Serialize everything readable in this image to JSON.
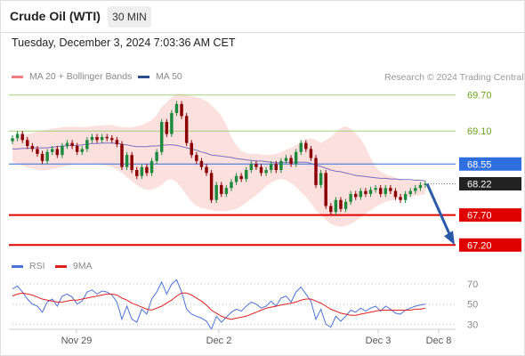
{
  "header": {
    "title": "Crude Oil (WTI)",
    "timeframe": "30 MIN",
    "datetime": "Tuesday, December 3, 2024 7:03:36 AM CET"
  },
  "legend": {
    "bollinger": {
      "label": "MA 20 + Bollinger Bands",
      "color": "#f08080"
    },
    "ma50": {
      "label": "MA 50",
      "color": "#2b4e8c"
    },
    "copyright": "Research © 2024 Trading Central"
  },
  "rsi_legend": {
    "rsi": {
      "label": "RSI",
      "color": "#4a72d8"
    },
    "ma": {
      "label": "9MA",
      "color": "#e02020"
    }
  },
  "chart_data": [
    {
      "type": "candlestick",
      "ylim": [
        67.13,
        69.8
      ],
      "levels": [
        {
          "value": 69.7,
          "label": "69.70",
          "kind": "target",
          "color": "#6aa61e"
        },
        {
          "value": 69.1,
          "label": "69.10",
          "kind": "target",
          "color": "#6aa61e"
        },
        {
          "value": 68.55,
          "label": "68.55",
          "kind": "pivot",
          "color": "#2f6fe0"
        },
        {
          "value": 68.22,
          "label": "68.22",
          "kind": "last",
          "color": "#222222"
        },
        {
          "value": 67.7,
          "label": "67.70",
          "kind": "support",
          "color": "#e00000"
        },
        {
          "value": 67.2,
          "label": "67.20",
          "kind": "support",
          "color": "#e00000"
        }
      ],
      "x_ticks": [
        "Nov 29",
        "Dec 2",
        "Dec 3",
        "Dec 8"
      ],
      "close": [
        68.98,
        69.05,
        68.95,
        68.85,
        68.8,
        68.72,
        68.6,
        68.75,
        68.8,
        68.7,
        68.85,
        68.9,
        68.85,
        68.75,
        68.8,
        68.95,
        69.0,
        68.95,
        69.0,
        68.98,
        68.95,
        68.88,
        68.5,
        68.7,
        68.45,
        68.35,
        68.5,
        68.4,
        68.6,
        68.75,
        69.25,
        69.05,
        69.4,
        69.55,
        69.35,
        68.9,
        68.7,
        68.6,
        68.5,
        68.4,
        67.95,
        68.2,
        68.05,
        68.15,
        68.25,
        68.35,
        68.3,
        68.45,
        68.55,
        68.5,
        68.4,
        68.45,
        68.55,
        68.45,
        68.6,
        68.65,
        68.55,
        68.75,
        68.9,
        68.8,
        68.65,
        68.2,
        68.4,
        67.85,
        67.75,
        67.95,
        67.8,
        67.92,
        68.05,
        68.0,
        68.1,
        68.05,
        68.12,
        68.15,
        68.05,
        68.15,
        68.1,
        68.0,
        67.95,
        68.05,
        68.1,
        68.15,
        68.2,
        68.22
      ],
      "ma50": [
        68.8,
        68.8,
        68.81,
        68.81,
        68.82,
        68.82,
        68.82,
        68.82,
        68.83,
        68.84,
        68.85,
        68.85,
        68.86,
        68.86,
        68.87,
        68.88,
        68.89,
        68.89,
        68.9,
        68.9,
        68.9,
        68.89,
        68.88,
        68.87,
        68.85,
        68.84,
        68.84,
        68.84,
        68.85,
        68.85,
        68.86,
        68.87,
        68.87,
        68.86,
        68.84,
        68.82,
        68.8,
        68.78,
        68.75,
        68.73,
        68.7,
        68.69,
        68.68,
        68.67,
        68.66,
        68.64,
        68.63,
        68.62,
        68.61,
        68.6,
        68.6,
        68.59,
        68.58,
        68.57,
        68.57,
        68.58,
        68.58,
        68.58,
        68.58,
        68.58,
        68.56,
        68.53,
        68.51,
        68.48,
        68.45,
        68.43,
        68.42,
        68.4,
        68.38,
        68.36,
        68.35,
        68.34,
        68.33,
        68.32,
        68.31,
        68.31,
        68.3,
        68.3,
        68.29,
        68.29,
        68.29,
        68.28,
        68.28,
        68.27
      ],
      "bb_upper": [
        68.95,
        68.99,
        69.02,
        69.05,
        69.07,
        69.09,
        69.11,
        69.12,
        69.14,
        69.15,
        69.16,
        69.17,
        69.17,
        69.17,
        69.16,
        69.17,
        69.18,
        69.19,
        69.19,
        69.2,
        69.2,
        69.18,
        69.17,
        69.16,
        69.16,
        69.18,
        69.2,
        69.24,
        69.28,
        69.37,
        69.5,
        69.58,
        69.66,
        69.72,
        69.72,
        69.7,
        69.68,
        69.66,
        69.64,
        69.6,
        69.53,
        69.45,
        69.35,
        69.2,
        69.0,
        68.86,
        68.77,
        68.73,
        68.72,
        68.72,
        68.71,
        68.7,
        68.71,
        68.72,
        68.75,
        68.79,
        68.82,
        68.86,
        68.92,
        68.96,
        68.98,
        68.95,
        68.9,
        68.95,
        69.0,
        69.08,
        69.15,
        69.18,
        69.14,
        69.06,
        68.97,
        68.83,
        68.65,
        68.5,
        68.42,
        68.38,
        68.35,
        68.32,
        68.29,
        68.27,
        68.27,
        68.27,
        68.26,
        68.25
      ],
      "bb_lower": [
        68.58,
        68.55,
        68.52,
        68.49,
        68.47,
        68.45,
        68.44,
        68.45,
        68.46,
        68.48,
        68.5,
        68.52,
        68.54,
        68.56,
        68.56,
        68.56,
        68.55,
        68.55,
        68.54,
        68.52,
        68.5,
        68.46,
        68.4,
        68.33,
        68.26,
        68.2,
        68.15,
        68.12,
        68.12,
        68.15,
        68.2,
        68.28,
        68.3,
        68.25,
        68.15,
        68.03,
        67.92,
        67.85,
        67.82,
        67.8,
        67.78,
        67.77,
        67.76,
        67.77,
        67.78,
        67.8,
        67.85,
        67.9,
        67.97,
        68.03,
        68.1,
        68.18,
        68.24,
        68.28,
        68.3,
        68.28,
        68.23,
        68.17,
        68.08,
        68.0,
        67.9,
        67.78,
        67.7,
        67.62,
        67.55,
        67.52,
        67.5,
        67.52,
        67.55,
        67.6,
        67.66,
        67.72,
        67.78,
        67.84,
        67.88,
        67.92,
        67.94,
        67.96,
        67.98,
        68.0,
        68.01,
        68.02,
        68.03,
        68.04
      ]
    },
    {
      "type": "line",
      "ylim": [
        25,
        78
      ],
      "y_ticks": [
        "70",
        "50",
        "30"
      ],
      "series": [
        {
          "name": "RSI",
          "values": [
            65,
            68,
            62,
            55,
            50,
            48,
            42,
            52,
            55,
            48,
            58,
            60,
            57,
            50,
            53,
            62,
            64,
            60,
            63,
            62,
            59,
            52,
            35,
            48,
            35,
            32,
            45,
            40,
            55,
            62,
            72,
            60,
            70,
            74,
            62,
            45,
            40,
            38,
            36,
            33,
            25,
            38,
            32,
            37,
            42,
            45,
            43,
            48,
            52,
            50,
            46,
            48,
            53,
            48,
            56,
            58,
            52,
            62,
            67,
            60,
            53,
            35,
            45,
            30,
            27,
            38,
            33,
            38,
            44,
            42,
            46,
            43,
            46,
            48,
            43,
            48,
            45,
            41,
            40,
            44,
            46,
            48,
            49,
            50
          ]
        },
        {
          "name": "9MA",
          "values": [
            58,
            60,
            61,
            60,
            59,
            57,
            55,
            54,
            53,
            52,
            52,
            53,
            54,
            54,
            55,
            56,
            57,
            58,
            59,
            60,
            60,
            59,
            56,
            54,
            51,
            49,
            47,
            45,
            44,
            46,
            48,
            51,
            54,
            58,
            61,
            61,
            59,
            56,
            53,
            49,
            44,
            41,
            38,
            36,
            35,
            36,
            37,
            38,
            40,
            42,
            44,
            46,
            47,
            48,
            49,
            50,
            51,
            52,
            54,
            55,
            55,
            53,
            51,
            48,
            45,
            43,
            41,
            40,
            39,
            39,
            40,
            41,
            42,
            43,
            44,
            44,
            44,
            44,
            44,
            44,
            44,
            45,
            45,
            46
          ]
        }
      ]
    }
  ]
}
